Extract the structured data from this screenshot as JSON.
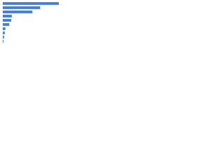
{
  "chart_data": {
    "type": "bar",
    "orientation": "horizontal",
    "categories": [
      null,
      null,
      null,
      null,
      null,
      null,
      null,
      null,
      null,
      null
    ],
    "values": [
      87,
      58,
      46,
      14,
      13,
      10,
      4,
      3,
      2,
      1
    ],
    "color": "#3f7fd8",
    "xlim": [
      0,
      100
    ]
  }
}
